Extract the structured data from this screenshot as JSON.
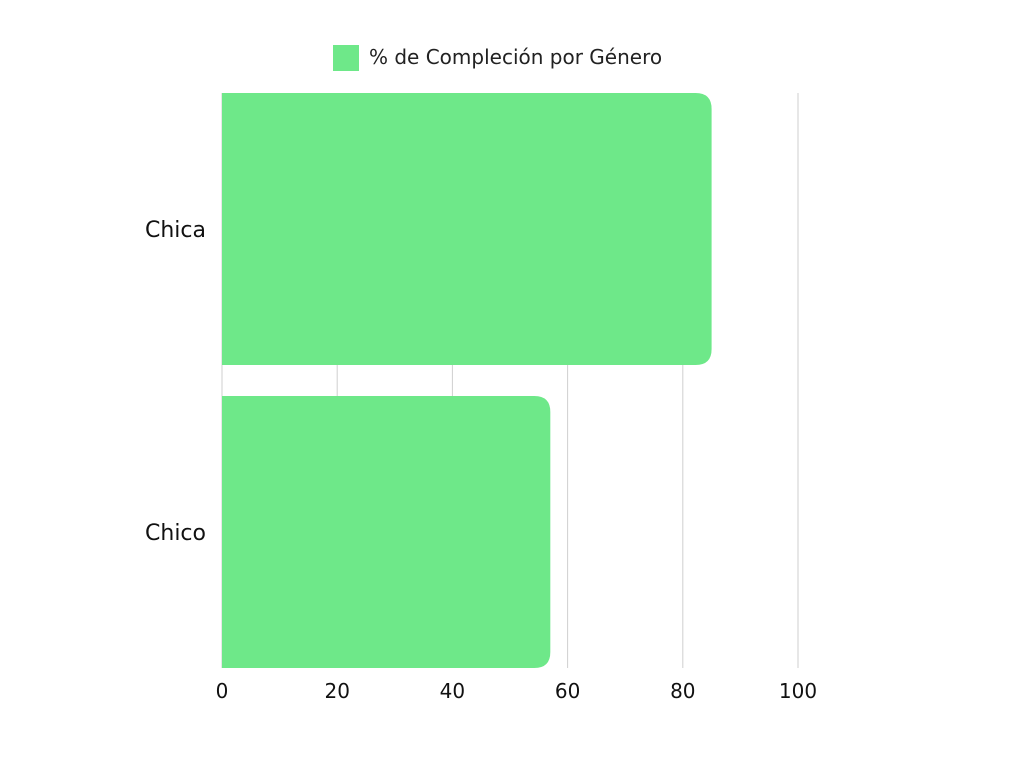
{
  "chart_data": {
    "type": "bar",
    "orientation": "horizontal",
    "categories": [
      "Chica",
      "Chico"
    ],
    "series": [
      {
        "name": "% de Compleción por Género",
        "values": [
          85,
          57
        ],
        "color": "#6ee889"
      }
    ],
    "xlim": [
      0,
      100
    ],
    "xticks": [
      "0",
      "20",
      "40",
      "60",
      "80",
      "100"
    ],
    "grid": true,
    "legend_position": "top-center",
    "title": "",
    "xlabel": "",
    "ylabel": ""
  }
}
